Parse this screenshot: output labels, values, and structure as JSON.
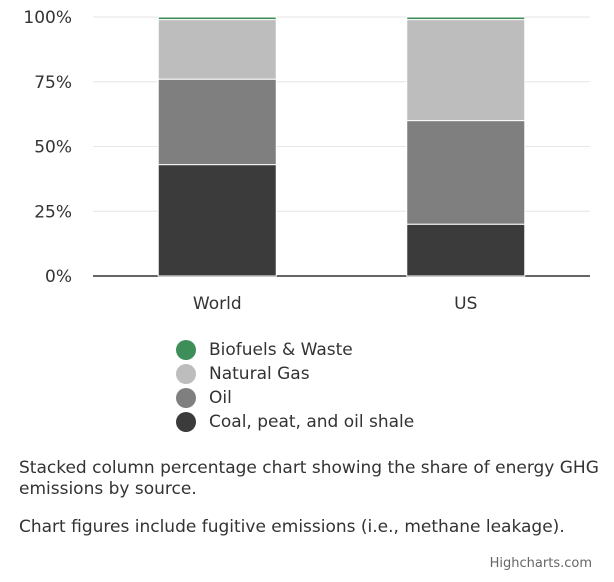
{
  "chart_data": {
    "type": "bar",
    "stacking": "percent",
    "categories": [
      "World",
      "US"
    ],
    "series": [
      {
        "name": "Coal, peat, and oil shale",
        "color": "#3b3b3b",
        "values": [
          43,
          20
        ]
      },
      {
        "name": "Oil",
        "color": "#7f7f7f",
        "values": [
          33,
          40
        ]
      },
      {
        "name": "Natural Gas",
        "color": "#bdbdbd",
        "values": [
          23,
          39
        ]
      },
      {
        "name": "Biofuels & Waste",
        "color": "#3e8e5a",
        "values": [
          1,
          1
        ]
      }
    ],
    "y_ticks": [
      "0%",
      "25%",
      "50%",
      "75%",
      "100%"
    ],
    "ylim": [
      0,
      100
    ],
    "legend_order": [
      "Biofuels & Waste",
      "Natural Gas",
      "Oil",
      "Coal, peat, and oil shale"
    ],
    "legend_position": "bottom"
  },
  "description": {
    "line1": "Stacked column percentage chart showing the share of energy GHG emissions by source.",
    "line2": "Chart figures include fugitive emissions (i.e., methane leakage)."
  },
  "credits": "Highcharts.com"
}
